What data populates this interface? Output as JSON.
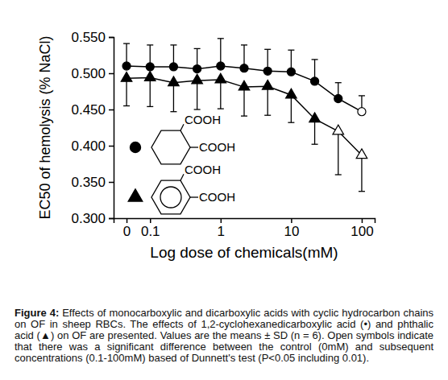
{
  "chart_data": {
    "type": "line",
    "x_label": "Log dose of chemicals(mM)",
    "y_label": "EC50 of hemolysis (% NaCl)",
    "categories": [
      "0",
      "0.1",
      null,
      null,
      "1",
      null,
      null,
      "10",
      null,
      null,
      "100"
    ],
    "ylim": [
      0.3,
      0.55
    ],
    "yticks": [
      {
        "value": 0.3,
        "label": "0.300"
      },
      {
        "value": 0.35,
        "label": "0.350"
      },
      {
        "value": 0.4,
        "label": "0.400"
      },
      {
        "value": 0.45,
        "label": "0.450"
      },
      {
        "value": 0.5,
        "label": "0.500"
      },
      {
        "value": 0.55,
        "label": "0.550"
      }
    ],
    "series": [
      {
        "marker": "circle",
        "color": "#000000",
        "values": [
          0.51,
          0.509,
          0.509,
          0.506,
          0.51,
          0.507,
          0.503,
          0.502,
          0.489,
          0.465,
          0.447
        ],
        "errors": [
          0.031,
          0.03,
          0.03,
          0.028,
          0.038,
          0.032,
          0.03,
          0.03,
          0.03,
          0.022,
          0.022
        ],
        "significant": [
          false,
          false,
          false,
          false,
          false,
          false,
          false,
          false,
          false,
          false,
          true
        ],
        "structure_labels": [
          "COOH",
          "COOH"
        ]
      },
      {
        "marker": "triangle",
        "color": "#000000",
        "values": [
          0.493,
          0.494,
          0.487,
          0.49,
          0.491,
          0.481,
          0.482,
          0.47,
          0.437,
          0.42,
          0.387
        ],
        "errors": [
          0.038,
          0.04,
          0.04,
          0.04,
          0.04,
          0.04,
          0.04,
          0.038,
          0.035,
          0.06,
          0.05
        ],
        "significant": [
          false,
          false,
          false,
          false,
          false,
          false,
          false,
          false,
          false,
          true,
          true
        ],
        "structure_labels": [
          "COOH",
          "COOH"
        ]
      }
    ],
    "caption_label": "Figure 4:",
    "caption": "Effects of monocarboxylic and dicarboxylic acids with cyclic hydrocarbon chains on OF in sheep RBCs. The effects of 1,2-cyclohexanedicarboxylic acid (•) and phthalic acid (▲) on OF are presented. Values are the means ± SD (n = 6). Open symbols indicate that there was a significant difference between the control (0mM) and subsequent concentrations (0.1-100mM) based of Dunnett's test (P<0.05 including 0.01)."
  }
}
